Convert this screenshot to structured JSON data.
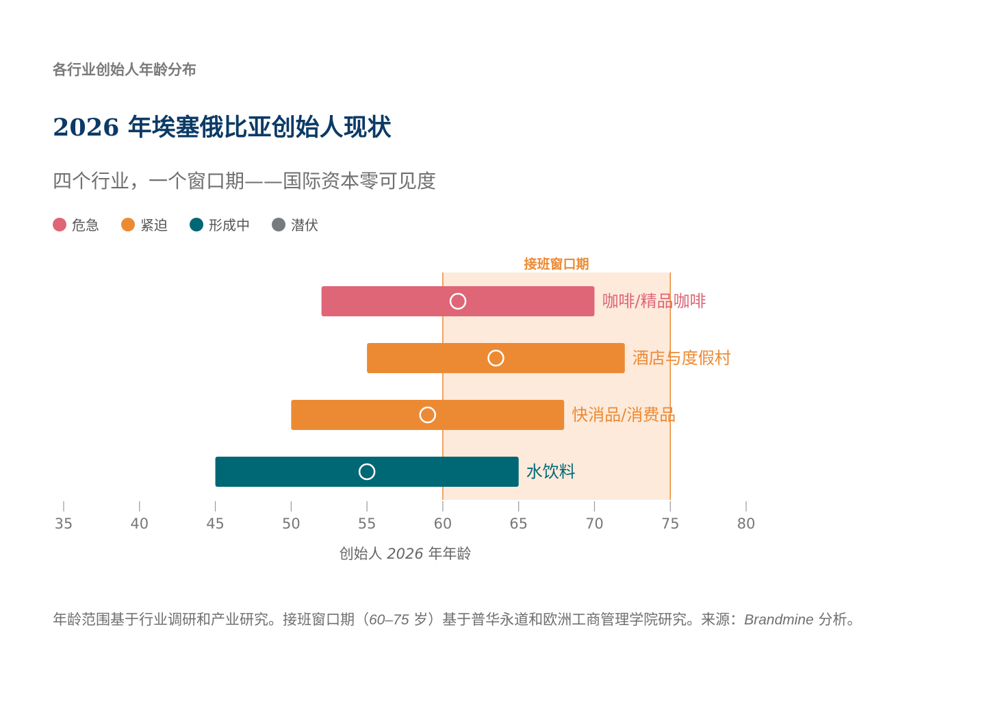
{
  "eyebrow": "各行业创始人年龄分布",
  "title": "2026 年埃塞俄比亚创始人现状",
  "subtitle": "四个行业，一个窗口期——国际资本零可见度",
  "legend": [
    {
      "label": "危急",
      "color": "#de6677"
    },
    {
      "label": "紧迫",
      "color": "#ec8a33"
    },
    {
      "label": "形成中",
      "color": "#006775"
    },
    {
      "label": "潜伏",
      "color": "#777b7d"
    }
  ],
  "chart_data": {
    "type": "bar",
    "orientation": "horizontal-range",
    "xlabel_prefix": "创始人",
    "xlabel_year": "2026",
    "xlabel_suffix": "年年龄",
    "xlim": [
      35,
      80
    ],
    "ticks": [
      35,
      40,
      45,
      50,
      55,
      60,
      65,
      70,
      75,
      80
    ],
    "window": {
      "label": "接班窗口期",
      "start": 60,
      "end": 75,
      "color": "#ec8a33"
    },
    "series": [
      {
        "name": "咖啡/精品咖啡",
        "min": 52,
        "max": 70,
        "median": 61,
        "status": "危急",
        "color": "#de6677"
      },
      {
        "name": "酒店与度假村",
        "min": 55,
        "max": 72,
        "median": 63.5,
        "status": "紧迫",
        "color": "#ec8a33"
      },
      {
        "name": "快消品/消费品",
        "min": 50,
        "max": 68,
        "median": 59,
        "status": "紧迫",
        "color": "#ec8a33"
      },
      {
        "name": "水饮料",
        "min": 45,
        "max": 65,
        "median": 55,
        "status": "形成中",
        "color": "#006775"
      }
    ]
  },
  "note": {
    "part1": "年龄范围基于行业调研和产业研究。接班窗口期（",
    "range": "60–75",
    "part2": " 岁）基于普华永道和欧洲工商管理学院研究。来源：",
    "source": "Brandmine",
    "part3": " 分析。"
  }
}
